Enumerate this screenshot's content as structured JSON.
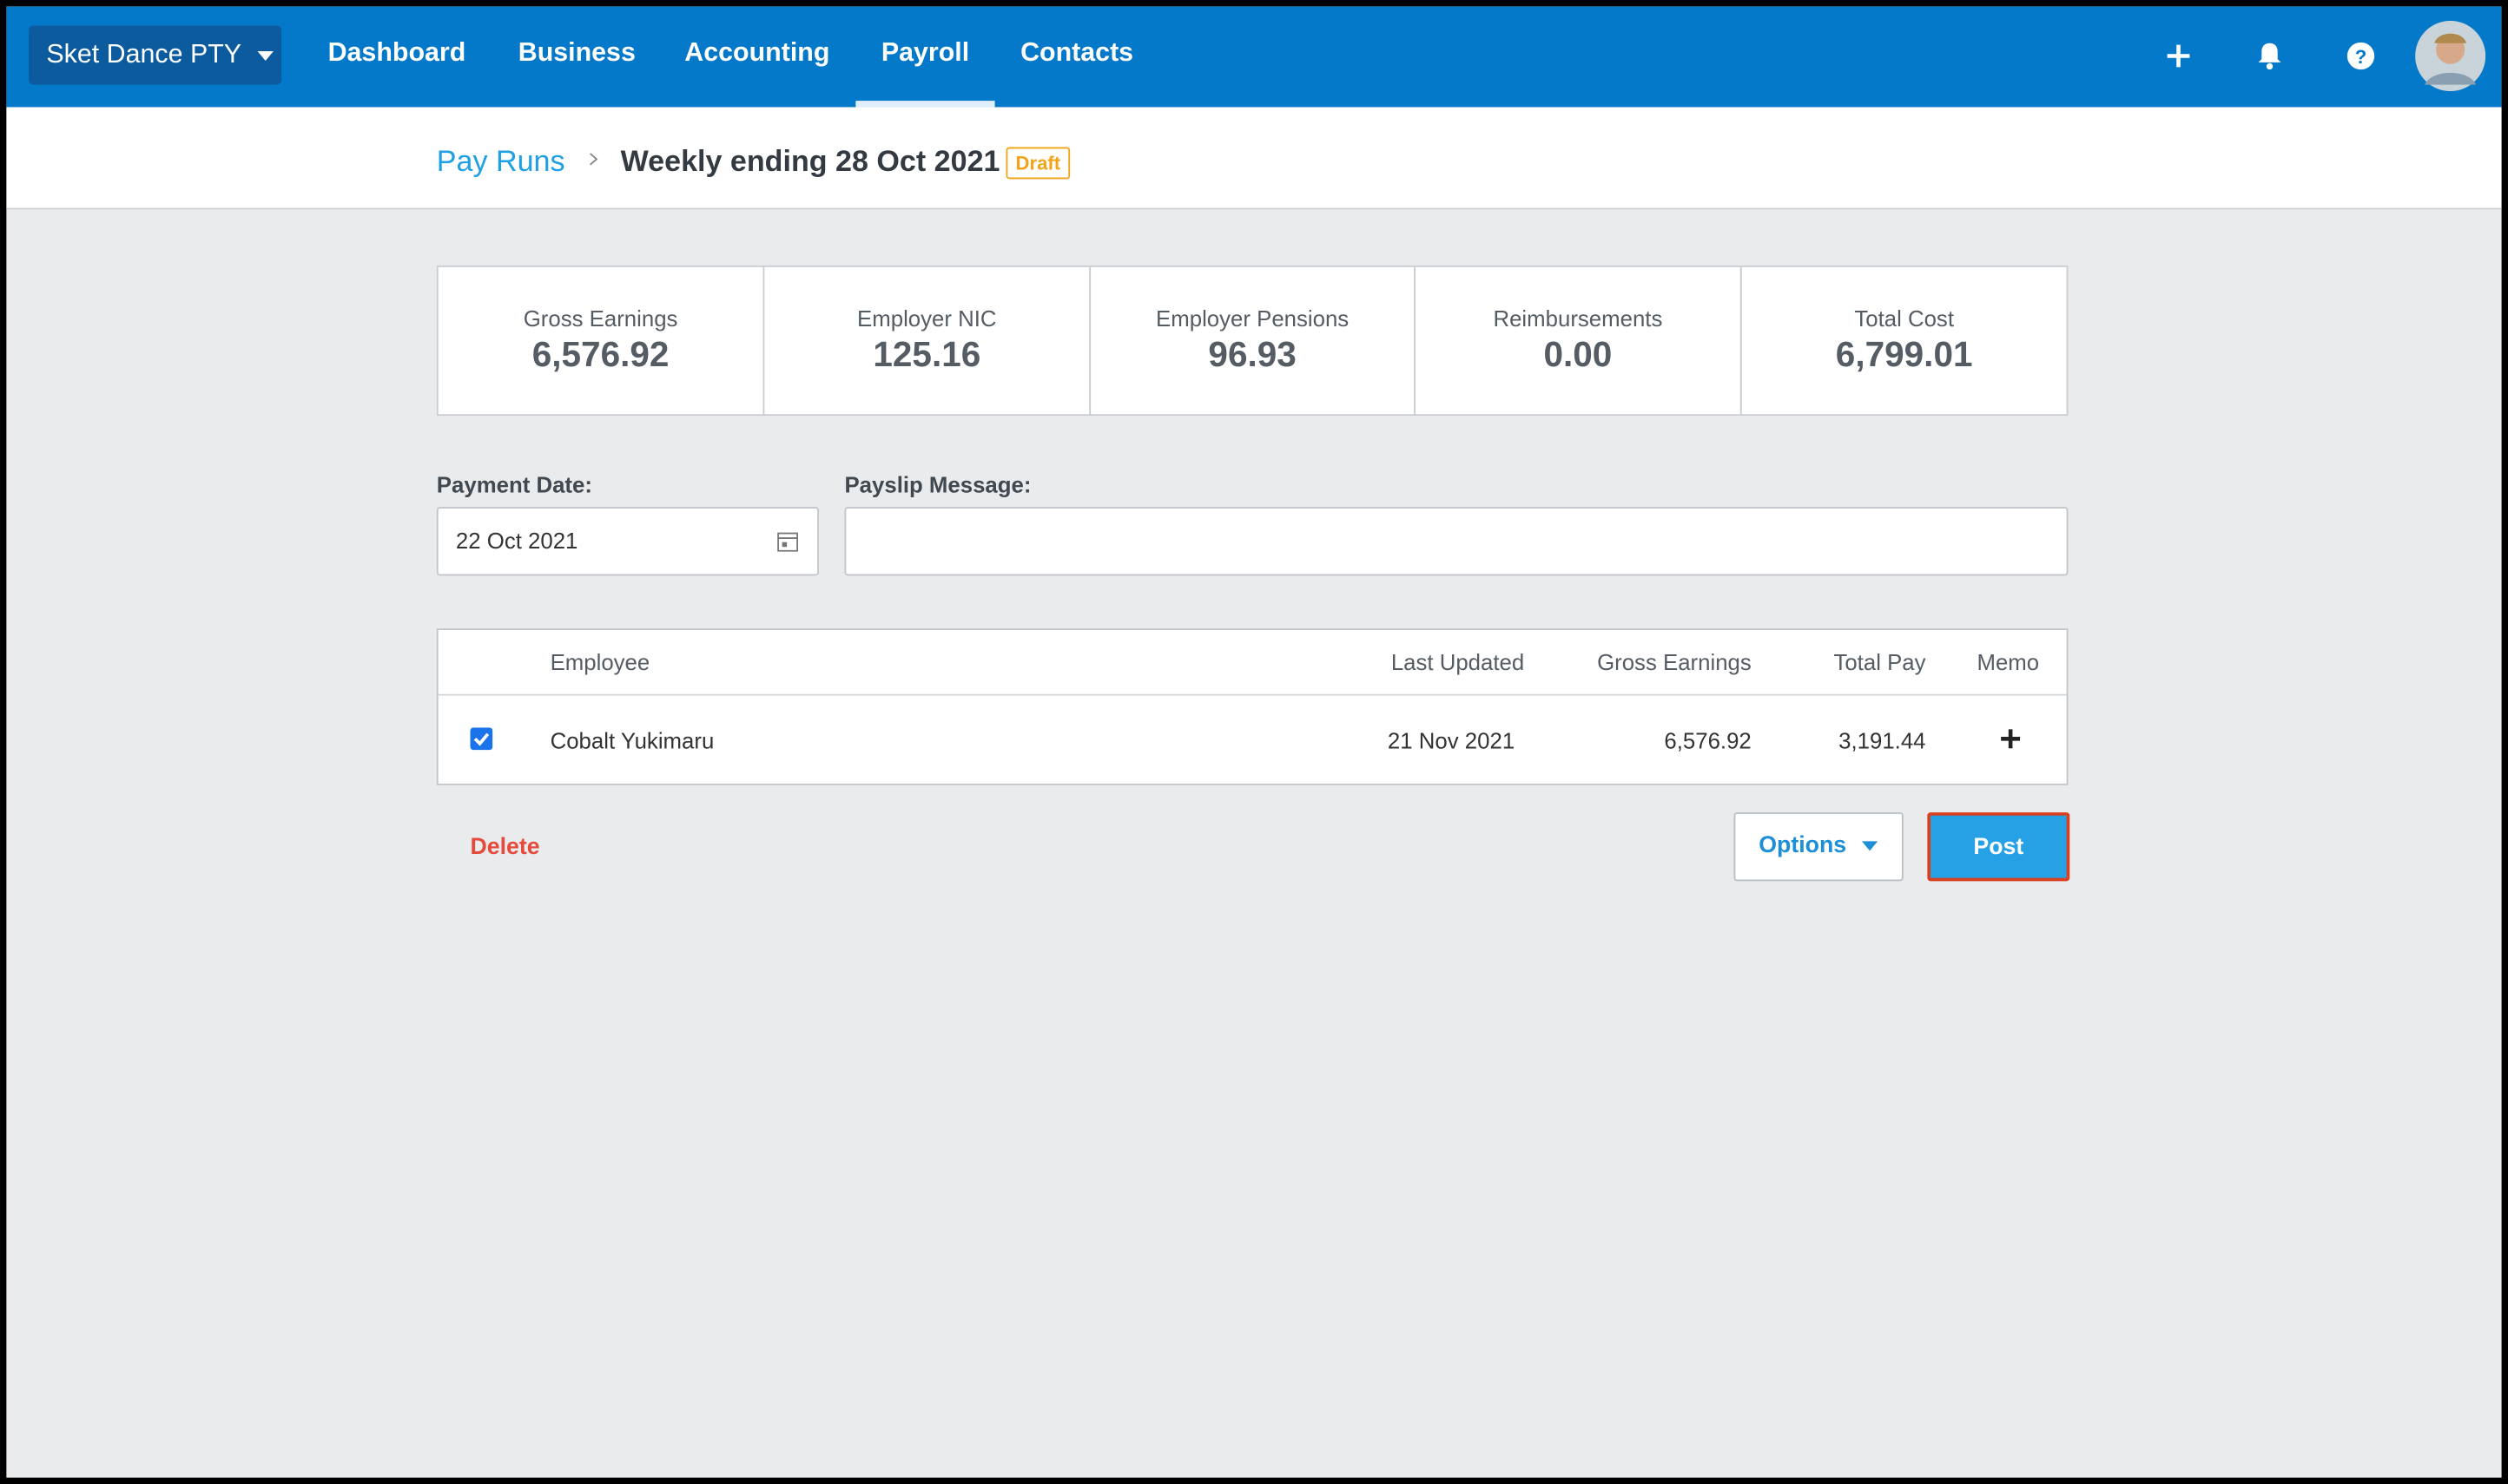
{
  "nav": {
    "org": "Sket Dance PTY",
    "items": [
      "Dashboard",
      "Business",
      "Accounting",
      "Payroll",
      "Contacts"
    ]
  },
  "breadcrumb": {
    "parent": "Pay Runs",
    "title": "Weekly ending 28 Oct 2021",
    "status": "Draft"
  },
  "summary": [
    {
      "label": "Gross Earnings",
      "value": "6,576.92"
    },
    {
      "label": "Employer NIC",
      "value": "125.16"
    },
    {
      "label": "Employer Pensions",
      "value": "96.93"
    },
    {
      "label": "Reimbursements",
      "value": "0.00"
    },
    {
      "label": "Total Cost",
      "value": "6,799.01"
    }
  ],
  "form": {
    "payment_date_label": "Payment Date:",
    "payment_date": "22 Oct 2021",
    "payslip_message_label": "Payslip Message:"
  },
  "table": {
    "columns": [
      "Employee",
      "Last Updated",
      "Gross Earnings",
      "Total Pay",
      "Memo"
    ],
    "rows": [
      [
        "Cobalt Yukimaru",
        "21 Nov 2021",
        "6,576.92",
        "3,191.44"
      ]
    ]
  },
  "actions": {
    "delete": "Delete",
    "options": "Options",
    "post": "Post"
  }
}
